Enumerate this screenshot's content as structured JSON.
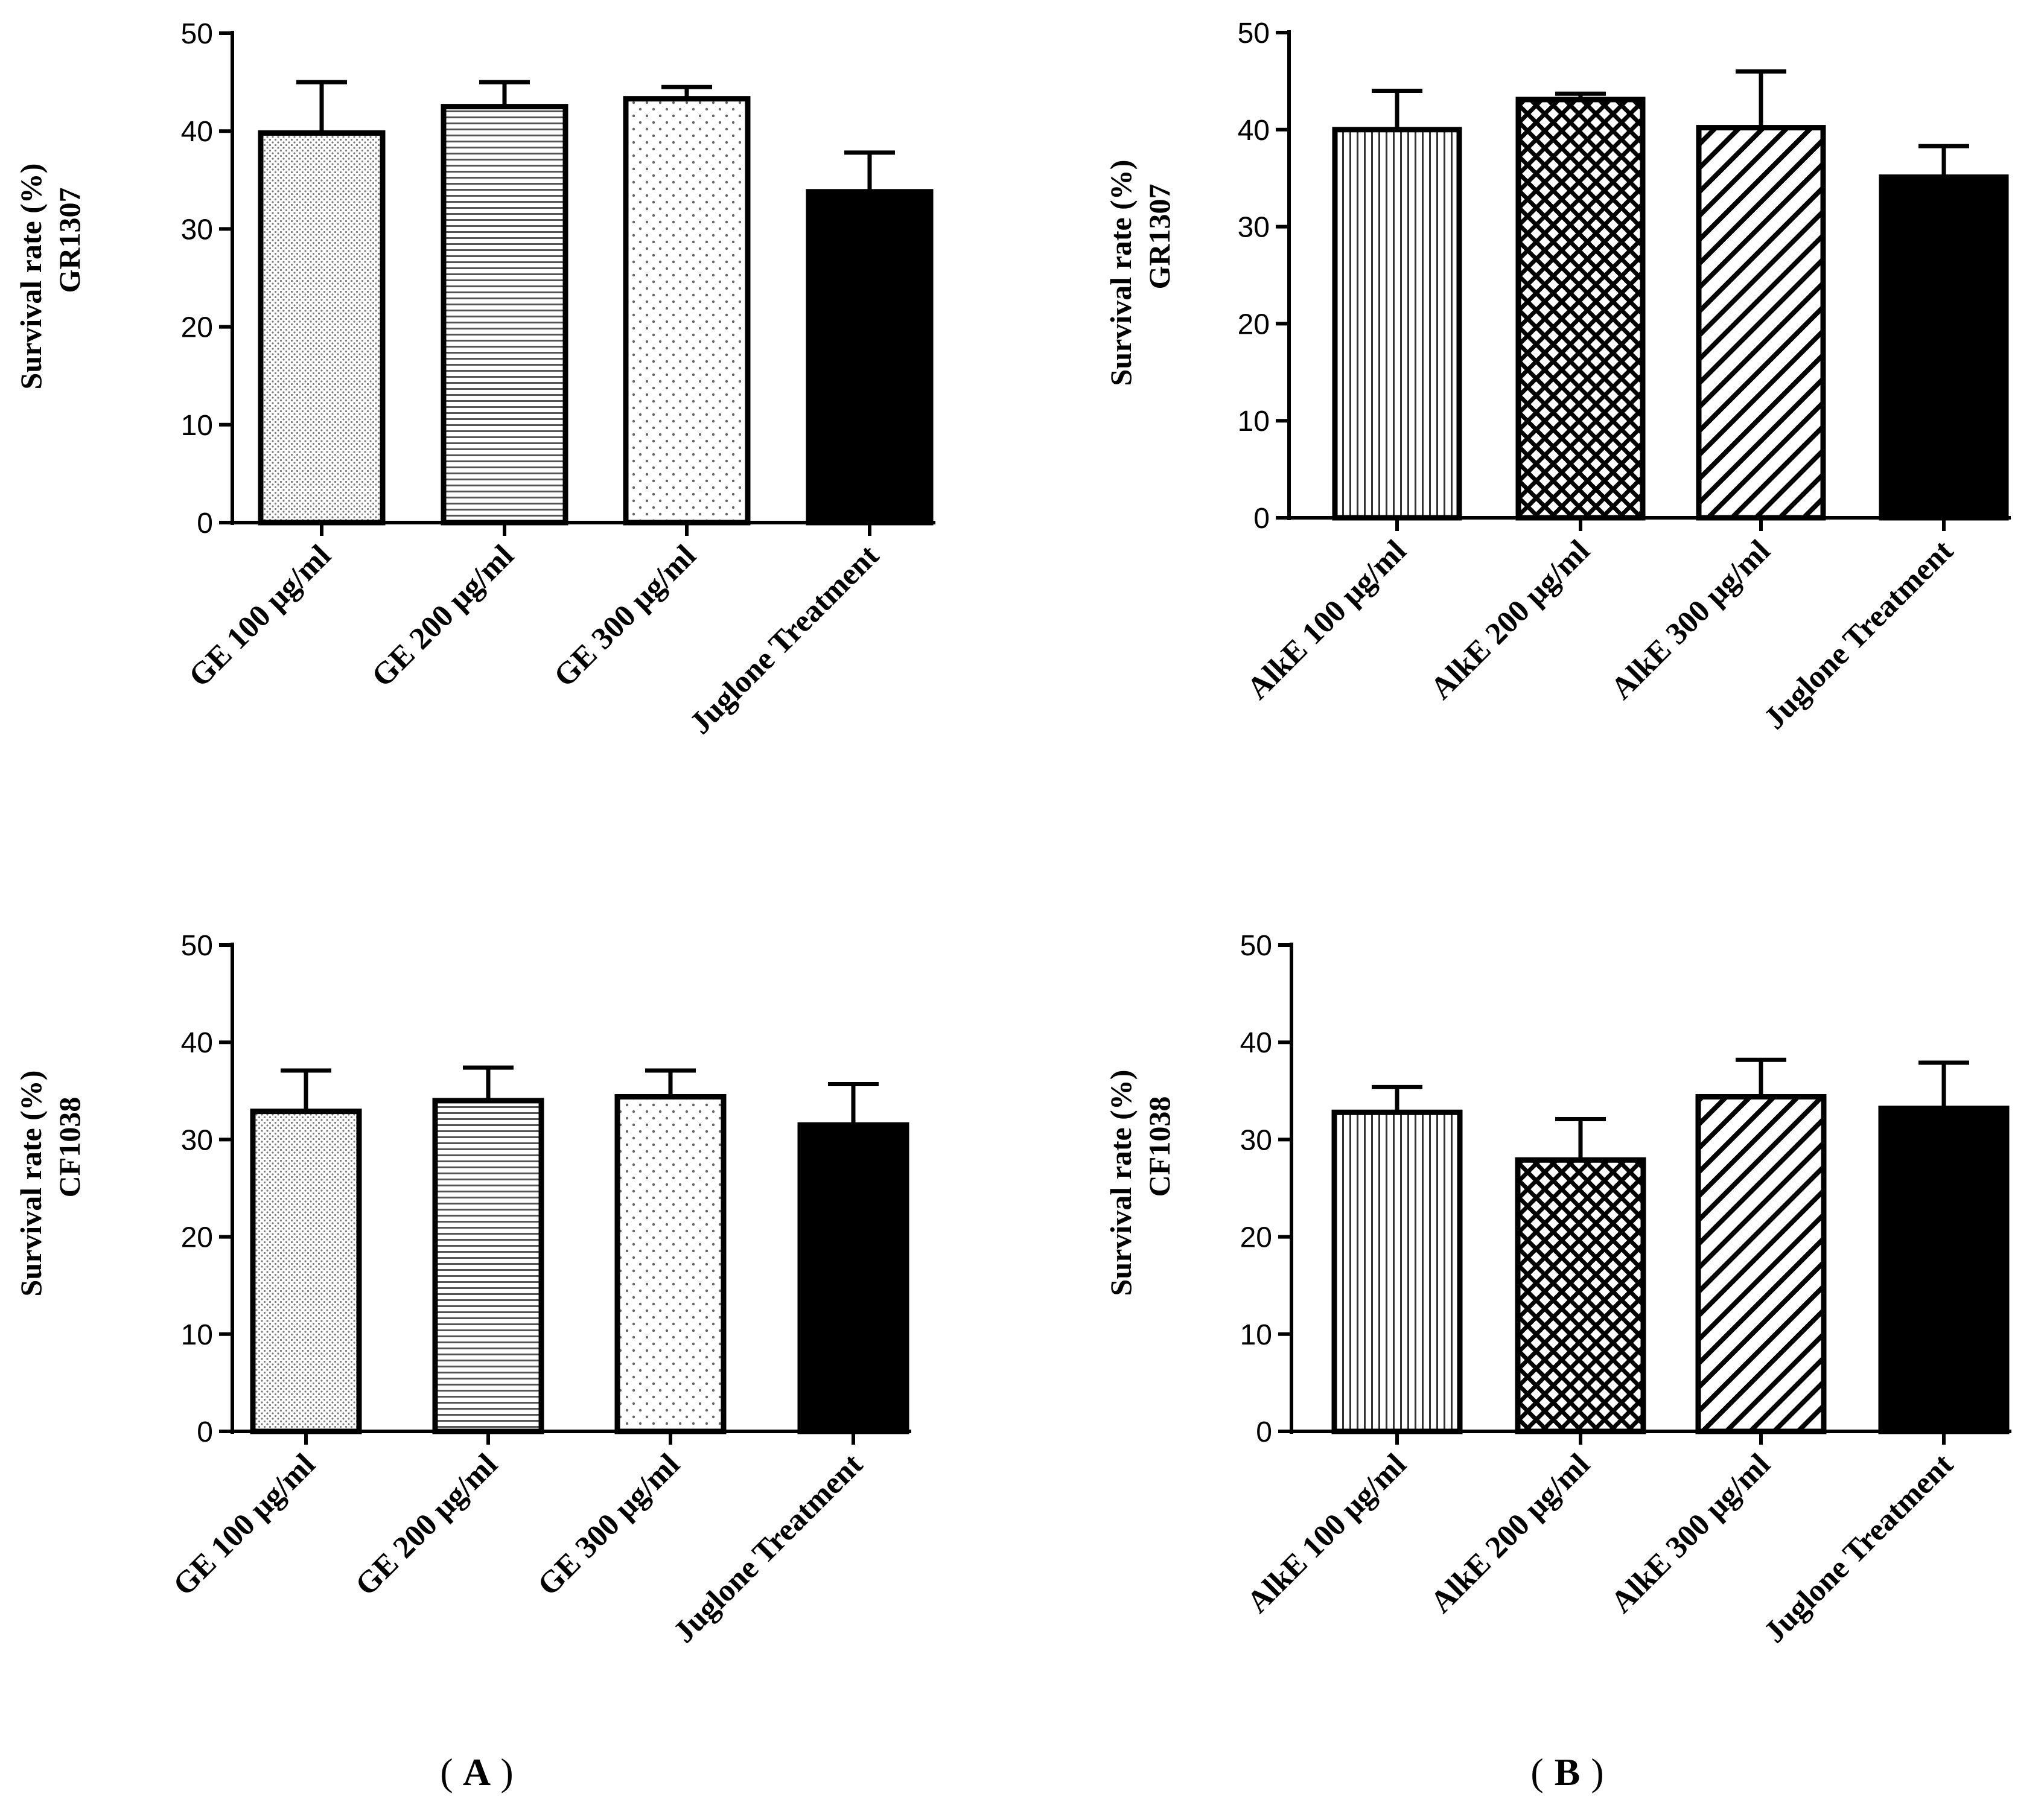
{
  "figure": {
    "panel_labels": [
      "A",
      "B"
    ]
  },
  "chart_data": [
    {
      "type": "bar",
      "panel": "A",
      "position": "top-left",
      "ylabel_line1": "Survival rate (%)",
      "ylabel_line2": "GR1307",
      "ylim": [
        0,
        50
      ],
      "yticks": [
        "0",
        "10",
        "20",
        "30",
        "40",
        "50"
      ],
      "categories": [
        "GE 100 μg/ml",
        "GE 200 μg/ml",
        "GE 300 μg/ml",
        "Juglone Treatment"
      ],
      "patterns": [
        "dots",
        "hlines",
        "sparsedots",
        "solid"
      ],
      "values": [
        39.8,
        42.5,
        43.3,
        33.8
      ],
      "errors": [
        5.2,
        2.5,
        1.2,
        4.0
      ]
    },
    {
      "type": "bar",
      "panel": "B",
      "position": "top-right",
      "ylabel_line1": "Survival rate (%)",
      "ylabel_line2": "GR1307",
      "ylim": [
        0,
        50
      ],
      "yticks": [
        "0",
        "10",
        "20",
        "30",
        "40",
        "50"
      ],
      "categories": [
        "AlkE 100 μg/ml",
        "AlkE 200 μg/ml",
        "AlkE 300 μg/ml",
        "Juglone Treatment"
      ],
      "patterns": [
        "vlines",
        "crosshatch",
        "diagonal",
        "solid"
      ],
      "values": [
        40.0,
        43.1,
        40.2,
        35.1
      ],
      "errors": [
        4.0,
        0.6,
        5.8,
        3.2
      ]
    },
    {
      "type": "bar",
      "panel": "A",
      "position": "bottom-left",
      "ylabel_line1": "Survival rate (%)",
      "ylabel_line2": "CF1038",
      "ylim": [
        0,
        50
      ],
      "yticks": [
        "0",
        "10",
        "20",
        "30",
        "40",
        "50"
      ],
      "categories": [
        "GE 100 μg/ml",
        "GE 200 μg/ml",
        "GE 300 μg/ml",
        "Juglone Treatment"
      ],
      "patterns": [
        "dots",
        "hlines",
        "sparsedots",
        "solid"
      ],
      "values": [
        32.9,
        34.0,
        34.4,
        31.5
      ],
      "errors": [
        4.2,
        3.4,
        2.7,
        4.2
      ]
    },
    {
      "type": "bar",
      "panel": "B",
      "position": "bottom-right",
      "ylabel_line1": "Survival rate (%)",
      "ylabel_line2": "CF1038",
      "ylim": [
        0,
        50
      ],
      "yticks": [
        "0",
        "10",
        "20",
        "30",
        "40",
        "50"
      ],
      "categories": [
        "AlkE 100 μg/ml",
        "AlkE 200 μg/ml",
        "AlkE 300 μg/ml",
        "Juglone Treatment"
      ],
      "patterns": [
        "vlines",
        "crosshatch",
        "diagonal",
        "solid"
      ],
      "values": [
        32.8,
        27.9,
        34.4,
        33.2
      ],
      "errors": [
        2.6,
        4.2,
        3.8,
        4.7
      ]
    }
  ]
}
